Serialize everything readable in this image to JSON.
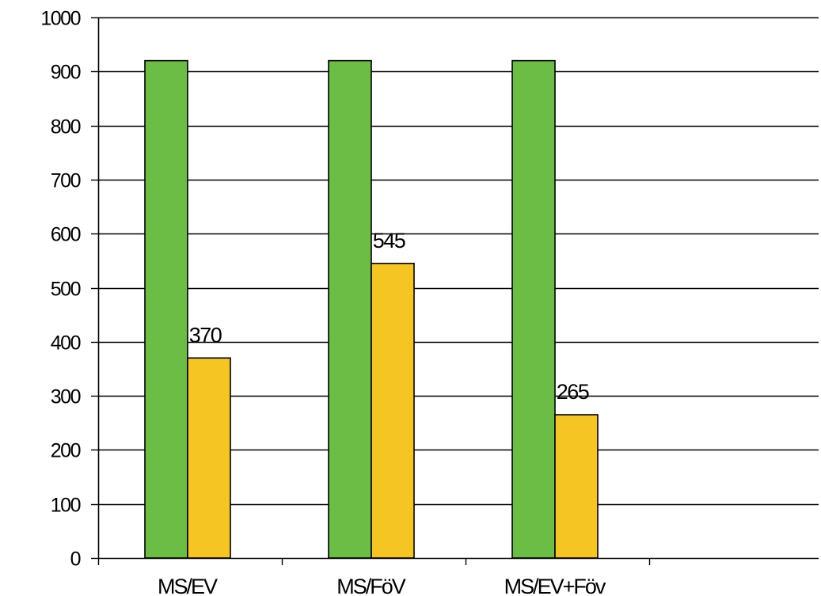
{
  "chart_data": {
    "type": "bar",
    "categories": [
      "MS/EV",
      "MS/FöV",
      "MS/EV+Föv",
      ""
    ],
    "series": [
      {
        "values": [
          920,
          920,
          920,
          null
        ],
        "color": "#6bbd45",
        "labels": [
          null,
          null,
          null,
          null
        ]
      },
      {
        "values": [
          370,
          545,
          265,
          null
        ],
        "color": "#f5c623",
        "labels": [
          "370",
          "545",
          "265",
          null
        ]
      }
    ],
    "title": "",
    "xlabel": "",
    "ylabel": "",
    "ylim": [
      0,
      1000
    ],
    "yticks": [
      0,
      100,
      200,
      300,
      400,
      500,
      600,
      700,
      800,
      900,
      1000
    ],
    "ytick_labels": [
      "0",
      "100",
      "200",
      "300",
      "400",
      "500",
      "600",
      "700",
      "800",
      "900",
      "1000"
    ],
    "grid": true,
    "legend": "none"
  }
}
